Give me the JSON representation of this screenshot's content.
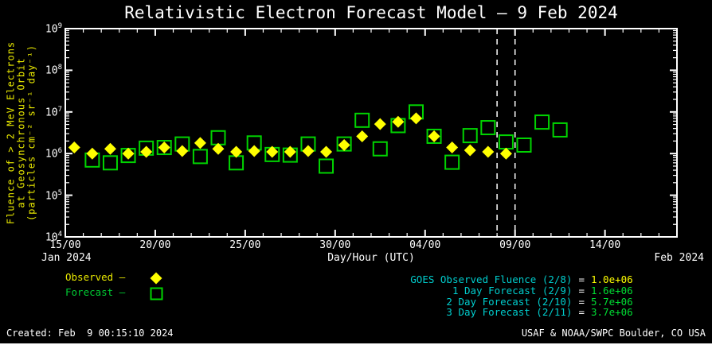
{
  "title": "Relativistic Electron Forecast Model — 9 Feb 2024",
  "chart_data": {
    "type": "scatter",
    "yscale": "log",
    "ylim": [
      10000.0,
      1000000000.0
    ],
    "xlabel": "Day/Hour (UTC)",
    "ylabel_lines": [
      "Fluence of > 2 MeV Electrons",
      "at Geosynchronous Orbit",
      "(particles cm⁻² sr⁻¹ day⁻¹)"
    ],
    "x_start_label": "Jan 2024",
    "x_end_label": "Feb 2024",
    "x_unit": "days since 15 Jan 2024 00:00 UTC",
    "xlim_days": [
      0,
      34
    ],
    "x_ticks": [
      {
        "day": 0,
        "label": "15/00"
      },
      {
        "day": 5,
        "label": "20/00"
      },
      {
        "day": 10,
        "label": "25/00"
      },
      {
        "day": 15,
        "label": "30/00"
      },
      {
        "day": 20,
        "label": "04/00"
      },
      {
        "day": 25,
        "label": "09/00"
      },
      {
        "day": 30,
        "label": "14/00"
      }
    ],
    "y_tick_exponents": [
      9,
      8,
      7,
      6,
      5,
      4
    ],
    "vline_days": [
      24,
      25
    ],
    "series": [
      {
        "name": "Observed",
        "marker": "diamond",
        "color": "#ffff00",
        "points": [
          [
            0.5,
            1400000.0
          ],
          [
            1.5,
            1000000.0
          ],
          [
            2.5,
            1300000.0
          ],
          [
            3.5,
            1000000.0
          ],
          [
            4.5,
            1100000.0
          ],
          [
            5.5,
            1400000.0
          ],
          [
            6.5,
            1150000.0
          ],
          [
            7.5,
            1800000.0
          ],
          [
            8.5,
            1300000.0
          ],
          [
            9.5,
            1100000.0
          ],
          [
            10.5,
            1150000.0
          ],
          [
            11.5,
            1100000.0
          ],
          [
            12.5,
            1100000.0
          ],
          [
            13.5,
            1150000.0
          ],
          [
            14.5,
            1100000.0
          ],
          [
            15.5,
            1600000.0
          ],
          [
            16.5,
            2600000.0
          ],
          [
            17.5,
            5100000.0
          ],
          [
            18.5,
            5800000.0
          ],
          [
            19.5,
            7000000.0
          ],
          [
            20.5,
            2600000.0
          ],
          [
            21.5,
            1400000.0
          ],
          [
            22.5,
            1200000.0
          ],
          [
            23.5,
            1100000.0
          ],
          [
            24.5,
            1000000.0
          ]
        ]
      },
      {
        "name": "Forecast",
        "marker": "square",
        "color": "#00d400",
        "points": [
          [
            1.5,
            700000.0
          ],
          [
            2.5,
            600000.0
          ],
          [
            3.5,
            900000.0
          ],
          [
            4.5,
            1350000.0
          ],
          [
            5.5,
            1400000.0
          ],
          [
            6.5,
            1700000.0
          ],
          [
            7.5,
            850000.0
          ],
          [
            8.5,
            2400000.0
          ],
          [
            9.5,
            600000.0
          ],
          [
            10.5,
            1800000.0
          ],
          [
            11.5,
            950000.0
          ],
          [
            12.5,
            920000.0
          ],
          [
            13.5,
            1700000.0
          ],
          [
            14.5,
            500000.0
          ],
          [
            15.5,
            1700000.0
          ],
          [
            16.5,
            6300000.0
          ],
          [
            17.5,
            1300000.0
          ],
          [
            18.5,
            4700000.0
          ],
          [
            19.5,
            10000000.0
          ],
          [
            20.5,
            2600000.0
          ],
          [
            21.5,
            620000.0
          ],
          [
            22.5,
            2700000.0
          ],
          [
            23.5,
            4200000.0
          ],
          [
            24.5,
            1900000.0
          ],
          [
            25.5,
            1600000.0
          ],
          [
            26.5,
            5700000.0
          ],
          [
            27.5,
            3700000.0
          ]
        ]
      }
    ]
  },
  "legend": {
    "observed_label": "Observed –",
    "forecast_label": "Forecast –"
  },
  "caption": {
    "eq": "=",
    "rows": [
      {
        "label": "GOES Observed Fluence (2/8)",
        "value": "1.0e+06"
      },
      {
        "label": "1 Day Forecast (2/9)",
        "value": "1.6e+06"
      },
      {
        "label": "2 Day Forecast (2/10)",
        "value": "5.7e+06"
      },
      {
        "label": "3 Day Forecast (2/11)",
        "value": "3.7e+06"
      }
    ]
  },
  "footer": {
    "created": "Created: Feb  9 00:15:10 2024",
    "agency": "USAF & NOAA/SWPC Boulder, CO USA"
  }
}
